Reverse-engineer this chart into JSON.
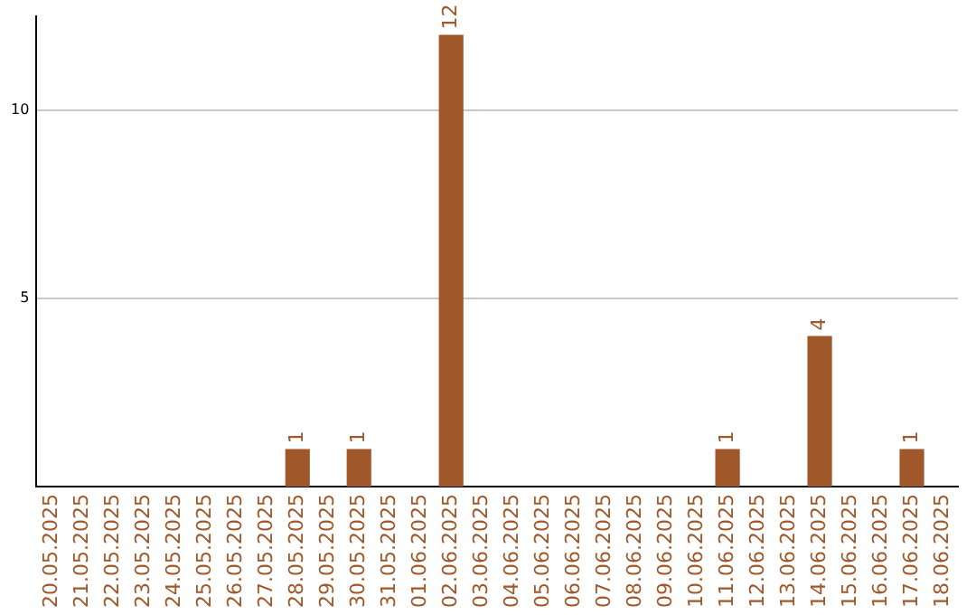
{
  "chart_data": {
    "type": "bar",
    "categories": [
      "20.05.2025",
      "21.05.2025",
      "22.05.2025",
      "23.05.2025",
      "24.05.2025",
      "25.05.2025",
      "26.05.2025",
      "27.05.2025",
      "28.05.2025",
      "29.05.2025",
      "30.05.2025",
      "31.05.2025",
      "01.06.2025",
      "02.06.2025",
      "03.06.2025",
      "04.06.2025",
      "05.06.2025",
      "06.06.2025",
      "07.06.2025",
      "08.06.2025",
      "09.06.2025",
      "10.06.2025",
      "11.06.2025",
      "12.06.2025",
      "13.06.2025",
      "14.06.2025",
      "15.06.2025",
      "16.06.2025",
      "17.06.2025",
      "18.06.2025"
    ],
    "values": [
      0,
      0,
      0,
      0,
      0,
      0,
      0,
      0,
      1,
      0,
      1,
      0,
      0,
      12,
      0,
      0,
      0,
      0,
      0,
      0,
      0,
      0,
      1,
      0,
      0,
      4,
      0,
      0,
      1,
      0
    ],
    "value_labels": [
      null,
      null,
      null,
      null,
      null,
      null,
      null,
      null,
      "1",
      null,
      "1",
      null,
      null,
      "12",
      null,
      null,
      null,
      null,
      null,
      null,
      null,
      null,
      "1",
      null,
      null,
      "4",
      null,
      null,
      "1",
      null
    ],
    "color": "#a0582a",
    "ylim": [
      0,
      12.5
    ],
    "yticks": [
      5,
      10
    ],
    "grid": "y",
    "legend": false
  }
}
